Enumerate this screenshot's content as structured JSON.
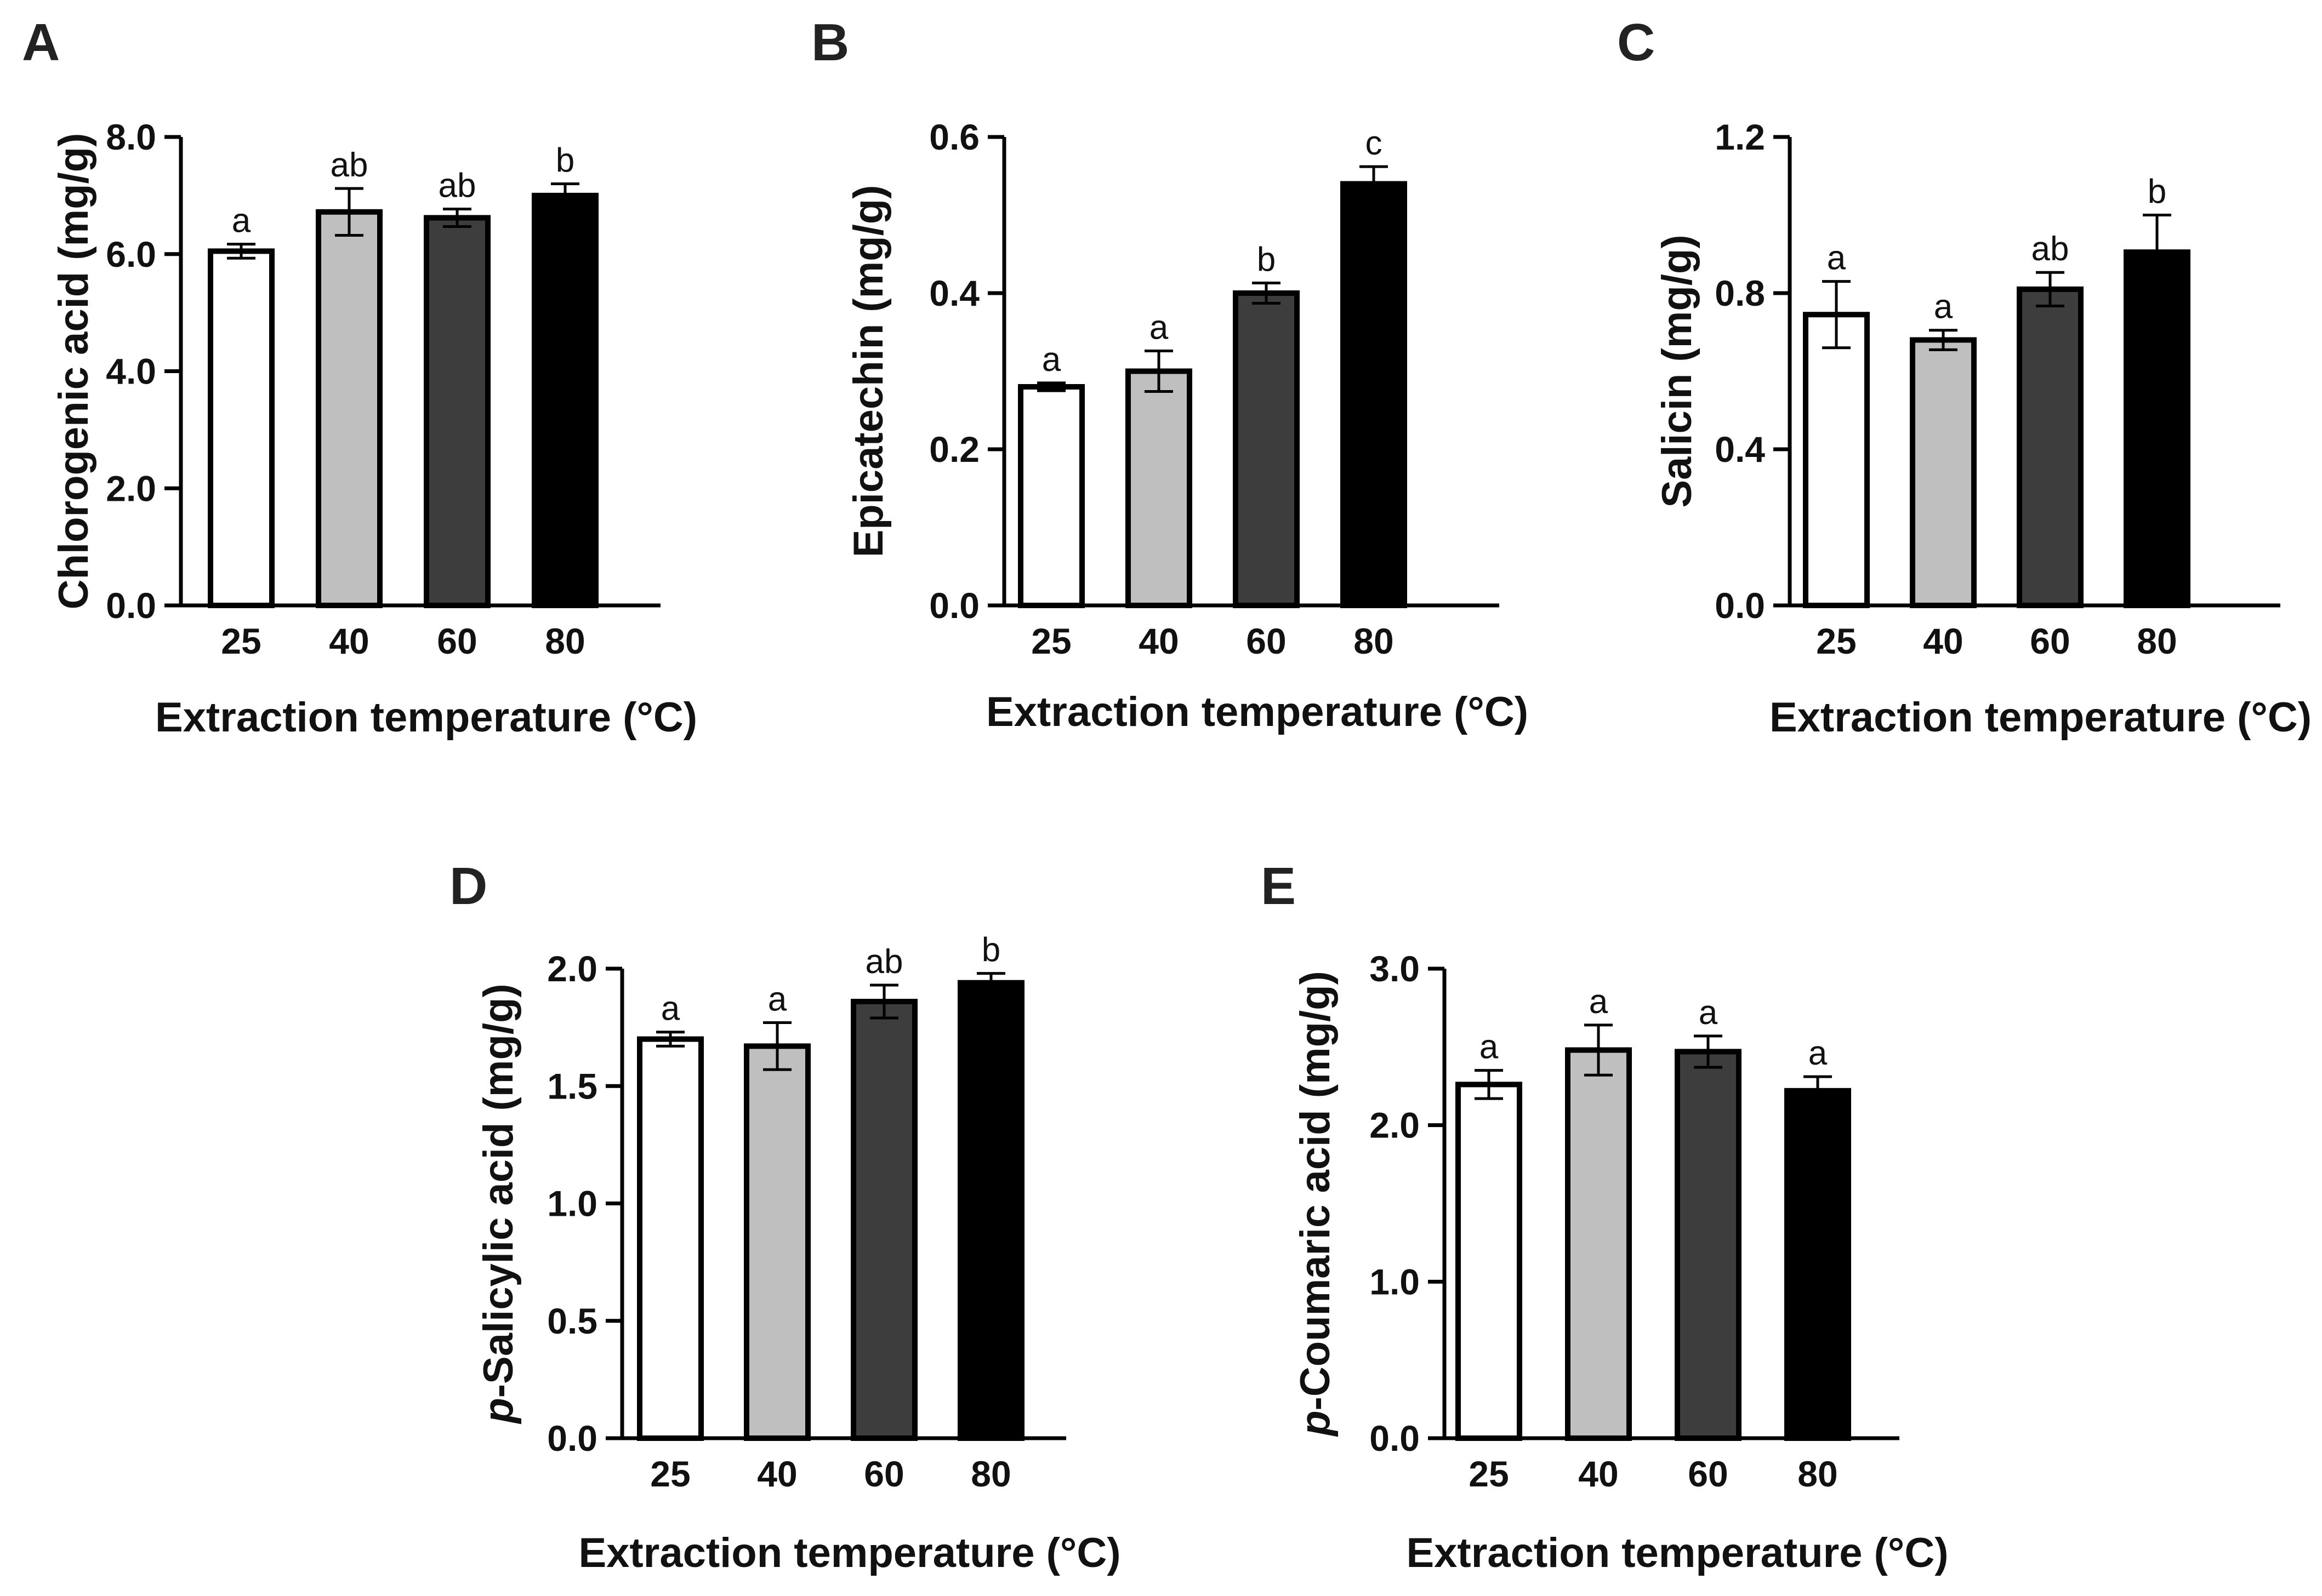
{
  "chart_data": [
    {
      "panel": "A",
      "type": "bar",
      "categories": [
        "25",
        "40",
        "60",
        "80"
      ],
      "values": [
        6.05,
        6.72,
        6.62,
        7.0
      ],
      "errors": [
        0.12,
        0.4,
        0.15,
        0.2
      ],
      "significance": [
        "a",
        "ab",
        "ab",
        "b"
      ],
      "ylabel": "Chlorogenic acid (mg/g)",
      "ylabel_prefix": "",
      "ylabel_rest": "Chlorogenic acid (mg/g)",
      "xlabel": "Extraction temperature (°C)",
      "ylim": [
        0,
        8
      ],
      "yticks": [
        0,
        2,
        4,
        6,
        8
      ],
      "ytick_labels": [
        "0.0",
        "2.0",
        "4.0",
        "6.0",
        "8.0"
      ]
    },
    {
      "panel": "B",
      "type": "bar",
      "categories": [
        "25",
        "40",
        "60",
        "80"
      ],
      "values": [
        0.28,
        0.3,
        0.4,
        0.54
      ],
      "errors": [
        0.005,
        0.026,
        0.013,
        0.022
      ],
      "significance": [
        "a",
        "a",
        "b",
        "c"
      ],
      "ylabel": "Epicatechin (mg/g)",
      "ylabel_prefix": "",
      "ylabel_rest": "Epicatechin (mg/g)",
      "xlabel": "Extraction temperature (°C)",
      "ylim": [
        0,
        0.6
      ],
      "yticks": [
        0,
        0.2,
        0.4,
        0.6
      ],
      "ytick_labels": [
        "0.0",
        "0.2",
        "0.4",
        "0.6"
      ]
    },
    {
      "panel": "C",
      "type": "bar",
      "categories": [
        "25",
        "40",
        "60",
        "80"
      ],
      "values": [
        0.745,
        0.68,
        0.81,
        0.905
      ],
      "errors": [
        0.085,
        0.025,
        0.043,
        0.095
      ],
      "significance": [
        "a",
        "a",
        "ab",
        "b"
      ],
      "ylabel": "Salicin (mg/g)",
      "ylabel_prefix": "",
      "ylabel_rest": "Salicin (mg/g)",
      "xlabel": "Extraction temperature (°C)",
      "ylim": [
        0,
        1.2
      ],
      "yticks": [
        0,
        0.4,
        0.8,
        1.2
      ],
      "ytick_labels": [
        "0.0",
        "0.4",
        "0.8",
        "1.2"
      ]
    },
    {
      "panel": "D",
      "type": "bar",
      "categories": [
        "25",
        "40",
        "60",
        "80"
      ],
      "values": [
        1.7,
        1.67,
        1.86,
        1.94
      ],
      "errors": [
        0.03,
        0.1,
        0.07,
        0.04
      ],
      "significance": [
        "a",
        "a",
        "ab",
        "b"
      ],
      "ylabel": "p-Salicylic acid (mg/g)",
      "ylabel_prefix": "p",
      "ylabel_rest": "-Salicylic acid (mg/g)",
      "xlabel": "Extraction temperature (°C)",
      "ylim": [
        0,
        2
      ],
      "yticks": [
        0,
        0.5,
        1,
        1.5,
        2
      ],
      "ytick_labels": [
        "0.0",
        "0.5",
        "1.0",
        "1.5",
        "2.0"
      ]
    },
    {
      "panel": "E",
      "type": "bar",
      "categories": [
        "25",
        "40",
        "60",
        "80"
      ],
      "values": [
        2.26,
        2.48,
        2.47,
        2.22
      ],
      "errors": [
        0.09,
        0.16,
        0.1,
        0.09
      ],
      "significance": [
        "a",
        "a",
        "a",
        "a"
      ],
      "ylabel": "p-Coumaric acid (mg/g)",
      "ylabel_prefix": "p",
      "ylabel_rest": "-Coumaric acid (mg/g)",
      "xlabel": "Extraction temperature (°C)",
      "ylim": [
        0,
        3
      ],
      "yticks": [
        0,
        1,
        2,
        3
      ],
      "ytick_labels": [
        "0.0",
        "1.0",
        "2.0",
        "3.0"
      ]
    }
  ],
  "colors": {
    "bar_fills": [
      "#ffffff",
      "#bfbfbf",
      "#3d3d3d",
      "#000000"
    ],
    "stroke": "#000000",
    "text": "#111111"
  }
}
